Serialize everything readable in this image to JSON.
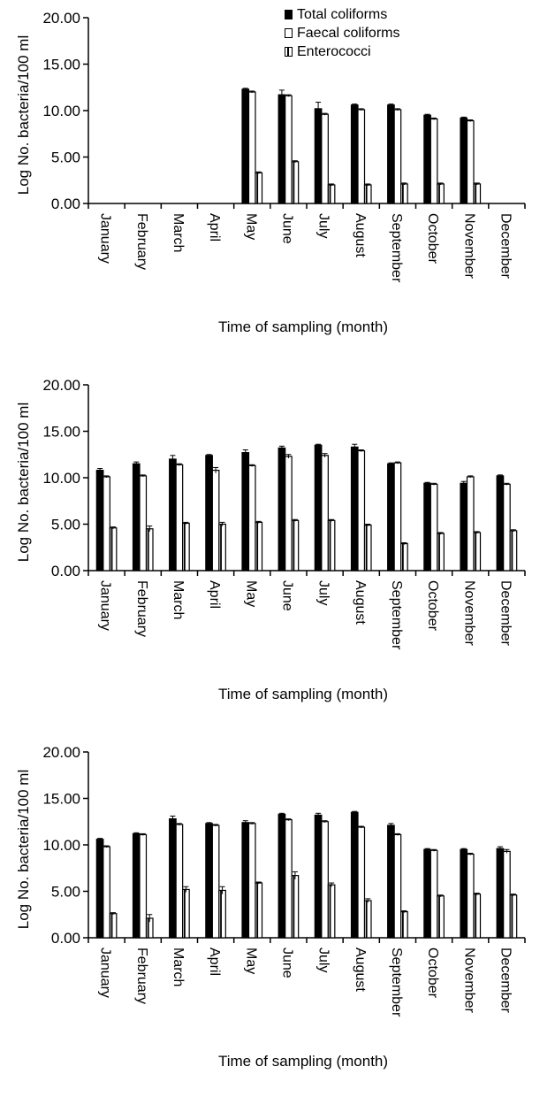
{
  "legend": {
    "items": [
      {
        "label": "Total coliforms",
        "icon": "filled-square-icon"
      },
      {
        "label": "Faecal coliforms",
        "icon": "open-square-icon"
      },
      {
        "label": "Enterococci",
        "icon": "half-filled-square-icon"
      }
    ]
  },
  "colors": {
    "total": "#000000",
    "faecal": "#ffffff",
    "entero": "#ffffff",
    "stroke": "#000000"
  },
  "chart_data": [
    {
      "type": "bar",
      "ylabel": "Log No. bacteria/100 ml",
      "xlabel": "Time of sampling (month)",
      "ylim": [
        0,
        20
      ],
      "yticks": [
        "0.00",
        "5.00",
        "10.00",
        "15.00",
        "20.00"
      ],
      "categories": [
        "January",
        "February",
        "March",
        "April",
        "May",
        "June",
        "July",
        "August",
        "September",
        "October",
        "November",
        "December"
      ],
      "legend_position": "top-right",
      "series": [
        {
          "name": "Total coliforms",
          "values": [
            null,
            null,
            null,
            null,
            12.3,
            11.7,
            10.2,
            10.6,
            10.6,
            9.5,
            9.2,
            null
          ],
          "errors": [
            null,
            null,
            null,
            null,
            0.1,
            0.5,
            0.7,
            0.1,
            0.1,
            0.1,
            0.1,
            null
          ]
        },
        {
          "name": "Faecal coliforms",
          "values": [
            null,
            null,
            null,
            null,
            12.0,
            11.6,
            9.6,
            10.1,
            10.1,
            9.1,
            8.9,
            null
          ],
          "errors": [
            null,
            null,
            null,
            null,
            0.1,
            0.1,
            0.1,
            0.1,
            0.1,
            0.1,
            0.1,
            null
          ]
        },
        {
          "name": "Enterococci",
          "values": [
            null,
            null,
            null,
            null,
            3.3,
            4.5,
            2.0,
            2.0,
            2.1,
            2.1,
            2.1,
            null
          ],
          "errors": [
            null,
            null,
            null,
            null,
            0.1,
            0.1,
            0.1,
            0.1,
            0.1,
            0.1,
            0.1,
            null
          ]
        }
      ]
    },
    {
      "type": "bar",
      "ylabel": "Log No. bacteria/100 ml",
      "xlabel": "Time of sampling (month)",
      "ylim": [
        0,
        20
      ],
      "yticks": [
        "0.00",
        "5.00",
        "10.00",
        "15.00",
        "20.00"
      ],
      "categories": [
        "January",
        "February",
        "March",
        "April",
        "May",
        "June",
        "July",
        "August",
        "September",
        "October",
        "November",
        "December"
      ],
      "series": [
        {
          "name": "Total coliforms",
          "values": [
            10.8,
            11.5,
            12.0,
            12.4,
            12.7,
            13.2,
            13.5,
            13.3,
            11.5,
            9.4,
            9.4,
            10.2
          ],
          "errors": [
            0.2,
            0.2,
            0.4,
            0.1,
            0.3,
            0.2,
            0.1,
            0.3,
            0.1,
            0.1,
            0.2,
            0.1
          ]
        },
        {
          "name": "Faecal coliforms",
          "values": [
            10.1,
            10.2,
            11.4,
            10.8,
            11.3,
            12.3,
            12.4,
            12.9,
            11.6,
            9.3,
            10.1,
            9.3
          ],
          "errors": [
            0.1,
            0.1,
            0.1,
            0.3,
            0.1,
            0.2,
            0.2,
            0.1,
            0.1,
            0.1,
            0.1,
            0.1
          ]
        },
        {
          "name": "Enterococci",
          "values": [
            4.6,
            4.5,
            5.1,
            5.0,
            5.2,
            5.4,
            5.4,
            4.9,
            2.9,
            4.0,
            4.1,
            4.3
          ],
          "errors": [
            0.1,
            0.3,
            0.1,
            0.2,
            0.1,
            0.1,
            0.1,
            0.1,
            0.1,
            0.1,
            0.1,
            0.1
          ]
        }
      ]
    },
    {
      "type": "bar",
      "ylabel": "Log No. bacteria/100 ml",
      "xlabel": "Time of sampling (month)",
      "ylim": [
        0,
        20
      ],
      "yticks": [
        "0.00",
        "5.00",
        "10.00",
        "15.00",
        "20.00"
      ],
      "categories": [
        "January",
        "February",
        "March",
        "April",
        "May",
        "June",
        "July",
        "August",
        "September",
        "October",
        "November",
        "December"
      ],
      "series": [
        {
          "name": "Total coliforms",
          "values": [
            10.6,
            11.2,
            12.8,
            12.3,
            12.4,
            13.3,
            13.2,
            13.5,
            12.1,
            9.5,
            9.5,
            9.6
          ],
          "errors": [
            0.1,
            0.1,
            0.3,
            0.1,
            0.2,
            0.1,
            0.2,
            0.1,
            0.2,
            0.1,
            0.1,
            0.2
          ]
        },
        {
          "name": "Faecal coliforms",
          "values": [
            9.8,
            11.1,
            12.2,
            12.1,
            12.3,
            12.7,
            12.5,
            11.9,
            11.1,
            9.4,
            9.0,
            9.3
          ],
          "errors": [
            0.1,
            0.1,
            0.1,
            0.1,
            0.1,
            0.1,
            0.1,
            0.1,
            0.1,
            0.1,
            0.1,
            0.2
          ]
        },
        {
          "name": "Enterococci",
          "values": [
            2.6,
            2.1,
            5.2,
            5.1,
            5.9,
            6.7,
            5.7,
            4.0,
            2.8,
            4.5,
            4.7,
            4.6
          ],
          "errors": [
            0.1,
            0.4,
            0.3,
            0.4,
            0.1,
            0.4,
            0.2,
            0.2,
            0.1,
            0.1,
            0.1,
            0.1
          ]
        }
      ]
    }
  ]
}
